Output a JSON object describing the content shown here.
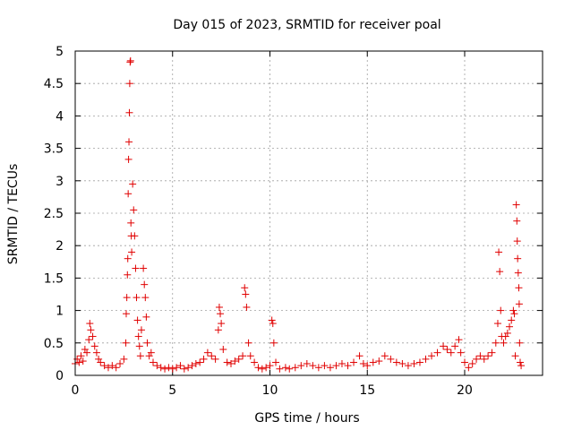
{
  "chart_data": {
    "type": "scatter",
    "title": "Day 015 of 2023, SRMTID for receiver poal",
    "xlabel": "GPS time / hours",
    "ylabel": "SRMTID / TECUs",
    "xlim": [
      0,
      24
    ],
    "ylim": [
      0,
      5
    ],
    "x_ticks": [
      0,
      5,
      10,
      15,
      20
    ],
    "x_tick_labels": [
      "0",
      "5",
      "10",
      "15",
      "20"
    ],
    "y_ticks": [
      0,
      0.5,
      1,
      1.5,
      2,
      2.5,
      3,
      3.5,
      4,
      4.5,
      5
    ],
    "y_tick_labels": [
      "0",
      "0.5",
      "1",
      "1.5",
      "2",
      "2.5",
      "3",
      "3.5",
      "4",
      "4.5",
      "5"
    ],
    "grid": true,
    "marker": "+",
    "colors": {
      "series": "#e00000",
      "grid": "#a0a0a0",
      "axes": "#000000"
    },
    "series": [
      {
        "name": "SRMTID",
        "points": [
          [
            0.0,
            0.18
          ],
          [
            0.1,
            0.25
          ],
          [
            0.2,
            0.2
          ],
          [
            0.3,
            0.3
          ],
          [
            0.4,
            0.22
          ],
          [
            0.5,
            0.4
          ],
          [
            0.6,
            0.35
          ],
          [
            0.7,
            0.55
          ],
          [
            0.75,
            0.8
          ],
          [
            0.8,
            0.7
          ],
          [
            0.9,
            0.6
          ],
          [
            1.0,
            0.45
          ],
          [
            1.1,
            0.35
          ],
          [
            1.2,
            0.25
          ],
          [
            1.3,
            0.2
          ],
          [
            1.5,
            0.15
          ],
          [
            1.7,
            0.12
          ],
          [
            1.9,
            0.15
          ],
          [
            2.1,
            0.12
          ],
          [
            2.3,
            0.18
          ],
          [
            2.5,
            0.25
          ],
          [
            2.6,
            0.5
          ],
          [
            2.62,
            0.95
          ],
          [
            2.65,
            1.2
          ],
          [
            2.68,
            1.55
          ],
          [
            2.7,
            1.8
          ],
          [
            2.72,
            2.8
          ],
          [
            2.74,
            3.33
          ],
          [
            2.76,
            3.6
          ],
          [
            2.78,
            4.05
          ],
          [
            2.8,
            4.5
          ],
          [
            2.82,
            4.83
          ],
          [
            2.84,
            4.85
          ],
          [
            2.86,
            2.35
          ],
          [
            2.88,
            2.15
          ],
          [
            2.9,
            1.9
          ],
          [
            2.95,
            2.95
          ],
          [
            3.0,
            2.55
          ],
          [
            3.05,
            2.15
          ],
          [
            3.1,
            1.65
          ],
          [
            3.15,
            1.2
          ],
          [
            3.2,
            0.85
          ],
          [
            3.25,
            0.6
          ],
          [
            3.3,
            0.45
          ],
          [
            3.35,
            0.3
          ],
          [
            3.4,
            0.7
          ],
          [
            3.5,
            1.65
          ],
          [
            3.55,
            1.4
          ],
          [
            3.6,
            1.2
          ],
          [
            3.65,
            0.9
          ],
          [
            3.7,
            0.5
          ],
          [
            3.8,
            0.3
          ],
          [
            3.9,
            0.35
          ],
          [
            4.0,
            0.2
          ],
          [
            4.2,
            0.15
          ],
          [
            4.4,
            0.12
          ],
          [
            4.6,
            0.1
          ],
          [
            4.8,
            0.12
          ],
          [
            5.0,
            0.1
          ],
          [
            5.2,
            0.12
          ],
          [
            5.4,
            0.15
          ],
          [
            5.6,
            0.1
          ],
          [
            5.8,
            0.12
          ],
          [
            6.0,
            0.15
          ],
          [
            6.2,
            0.18
          ],
          [
            6.4,
            0.2
          ],
          [
            6.6,
            0.25
          ],
          [
            6.8,
            0.35
          ],
          [
            7.0,
            0.3
          ],
          [
            7.2,
            0.25
          ],
          [
            7.35,
            0.7
          ],
          [
            7.4,
            1.05
          ],
          [
            7.45,
            0.95
          ],
          [
            7.5,
            0.8
          ],
          [
            7.6,
            0.4
          ],
          [
            7.8,
            0.2
          ],
          [
            8.0,
            0.18
          ],
          [
            8.2,
            0.22
          ],
          [
            8.4,
            0.25
          ],
          [
            8.6,
            0.3
          ],
          [
            8.7,
            1.35
          ],
          [
            8.75,
            1.25
          ],
          [
            8.8,
            1.05
          ],
          [
            8.9,
            0.5
          ],
          [
            9.0,
            0.3
          ],
          [
            9.2,
            0.2
          ],
          [
            9.4,
            0.12
          ],
          [
            9.6,
            0.1
          ],
          [
            9.8,
            0.12
          ],
          [
            10.0,
            0.15
          ],
          [
            10.1,
            0.85
          ],
          [
            10.15,
            0.8
          ],
          [
            10.2,
            0.5
          ],
          [
            10.3,
            0.2
          ],
          [
            10.5,
            0.1
          ],
          [
            10.8,
            0.12
          ],
          [
            11.0,
            0.1
          ],
          [
            11.3,
            0.12
          ],
          [
            11.6,
            0.15
          ],
          [
            11.9,
            0.18
          ],
          [
            12.2,
            0.15
          ],
          [
            12.5,
            0.12
          ],
          [
            12.8,
            0.15
          ],
          [
            13.1,
            0.12
          ],
          [
            13.4,
            0.15
          ],
          [
            13.7,
            0.18
          ],
          [
            14.0,
            0.15
          ],
          [
            14.3,
            0.2
          ],
          [
            14.6,
            0.3
          ],
          [
            14.8,
            0.18
          ],
          [
            15.0,
            0.15
          ],
          [
            15.3,
            0.2
          ],
          [
            15.6,
            0.22
          ],
          [
            15.9,
            0.3
          ],
          [
            16.2,
            0.25
          ],
          [
            16.5,
            0.2
          ],
          [
            16.8,
            0.18
          ],
          [
            17.1,
            0.15
          ],
          [
            17.4,
            0.18
          ],
          [
            17.7,
            0.2
          ],
          [
            18.0,
            0.25
          ],
          [
            18.3,
            0.3
          ],
          [
            18.6,
            0.35
          ],
          [
            18.9,
            0.45
          ],
          [
            19.1,
            0.4
          ],
          [
            19.3,
            0.35
          ],
          [
            19.5,
            0.45
          ],
          [
            19.7,
            0.55
          ],
          [
            19.8,
            0.35
          ],
          [
            20.0,
            0.2
          ],
          [
            20.2,
            0.12
          ],
          [
            20.4,
            0.18
          ],
          [
            20.6,
            0.25
          ],
          [
            20.8,
            0.3
          ],
          [
            21.0,
            0.25
          ],
          [
            21.2,
            0.3
          ],
          [
            21.4,
            0.35
          ],
          [
            21.6,
            0.5
          ],
          [
            21.7,
            0.8
          ],
          [
            21.75,
            1.9
          ],
          [
            21.8,
            1.6
          ],
          [
            21.85,
            1.0
          ],
          [
            21.9,
            0.6
          ],
          [
            22.0,
            0.5
          ],
          [
            22.1,
            0.6
          ],
          [
            22.2,
            0.65
          ],
          [
            22.3,
            0.75
          ],
          [
            22.4,
            0.85
          ],
          [
            22.5,
            1.0
          ],
          [
            22.55,
            0.95
          ],
          [
            22.6,
            0.3
          ],
          [
            22.65,
            2.63
          ],
          [
            22.68,
            2.38
          ],
          [
            22.7,
            2.07
          ],
          [
            22.72,
            1.8
          ],
          [
            22.75,
            1.58
          ],
          [
            22.78,
            1.35
          ],
          [
            22.8,
            1.1
          ],
          [
            22.82,
            0.5
          ],
          [
            22.85,
            0.2
          ],
          [
            22.9,
            0.15
          ]
        ]
      }
    ]
  }
}
